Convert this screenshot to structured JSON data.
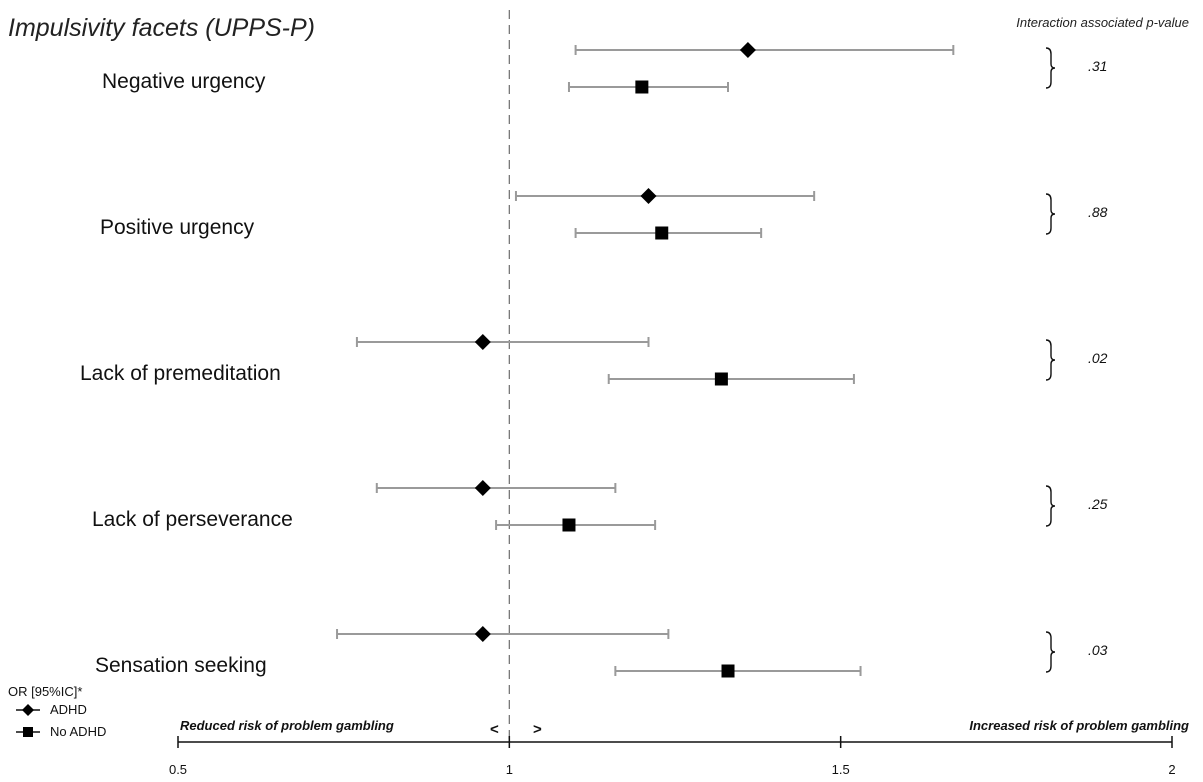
{
  "chart_data": {
    "type": "forest",
    "title": "Impulsivity facets (UPPS-P)",
    "pvalue_column_title": "Interaction associated p-value",
    "xlim": [
      0.5,
      2
    ],
    "ticks": [
      "0.5",
      "1",
      "1.5",
      "2"
    ],
    "reference_line": 1,
    "left_annotation": "Reduced risk of problem gambling",
    "right_annotation": "Increased risk of problem gambling",
    "arrow_left": "<",
    "arrow_right": ">",
    "legend_title": "OR [95%IC]*",
    "series": [
      {
        "name": "ADHD",
        "marker": "diamond"
      },
      {
        "name": "No ADHD",
        "marker": "square"
      }
    ],
    "facets": [
      {
        "label": "Negative urgency",
        "p_value": ".31",
        "ADHD": {
          "or": 1.36,
          "lo": 1.1,
          "hi": 1.67
        },
        "No ADHD": {
          "or": 1.2,
          "lo": 1.09,
          "hi": 1.33
        }
      },
      {
        "label": "Positive urgency",
        "p_value": ".88",
        "ADHD": {
          "or": 1.21,
          "lo": 1.01,
          "hi": 1.46
        },
        "No ADHD": {
          "or": 1.23,
          "lo": 1.1,
          "hi": 1.38
        }
      },
      {
        "label": "Lack of premeditation",
        "p_value": ".02",
        "ADHD": {
          "or": 0.96,
          "lo": 0.77,
          "hi": 1.21
        },
        "No ADHD": {
          "or": 1.32,
          "lo": 1.15,
          "hi": 1.52
        }
      },
      {
        "label": "Lack of perseverance",
        "p_value": ".25",
        "ADHD": {
          "or": 0.96,
          "lo": 0.8,
          "hi": 1.16
        },
        "No ADHD": {
          "or": 1.09,
          "lo": 0.98,
          "hi": 1.22
        }
      },
      {
        "label": "Sensation seeking",
        "p_value": ".03",
        "ADHD": {
          "or": 0.96,
          "lo": 0.74,
          "hi": 1.24
        },
        "No ADHD": {
          "or": 1.33,
          "lo": 1.16,
          "hi": 1.53
        }
      }
    ],
    "colors": {
      "ci_line": "#9a9a9a",
      "marker": "#000000",
      "axis": "#111111",
      "reference": "#777777"
    }
  }
}
